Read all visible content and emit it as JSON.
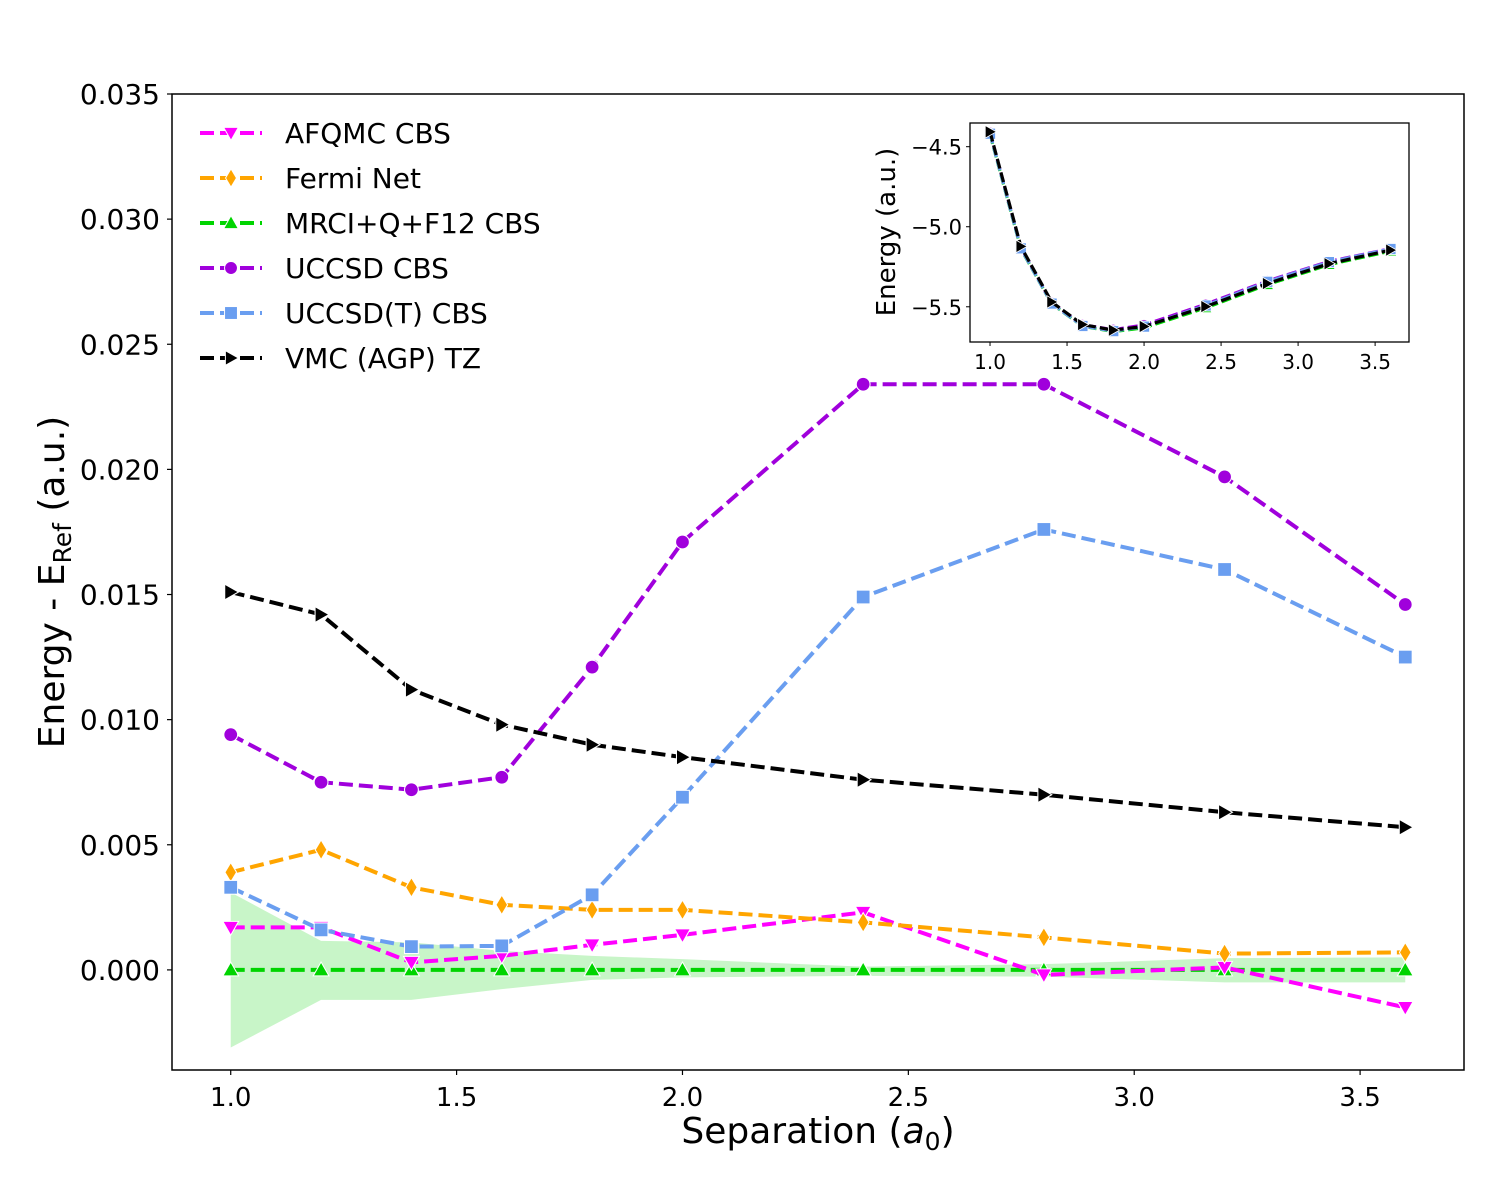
{
  "chart_data": [
    {
      "id": "main",
      "type": "line",
      "title": "",
      "xlabel": "Separation (a0)",
      "xlabel_parts": {
        "prefix": "Separation (",
        "var": "a",
        "sub": "0",
        "suffix": ")"
      },
      "ylabel": "Energy - E_Ref (a.u.)",
      "ylabel_parts": {
        "prefix": "Energy - E",
        "sub": "Ref",
        "suffix": " (a.u.)"
      },
      "xlim": [
        0.87,
        3.73
      ],
      "ylim": [
        -0.004,
        0.035
      ],
      "xticks": [
        1.0,
        1.5,
        2.0,
        2.5,
        3.0,
        3.5
      ],
      "xtick_labels": [
        "1.0",
        "1.5",
        "2.0",
        "2.5",
        "3.0",
        "3.5"
      ],
      "yticks": [
        0.0,
        0.005,
        0.01,
        0.015,
        0.02,
        0.025,
        0.03,
        0.035
      ],
      "ytick_labels": [
        "0.000",
        "0.005",
        "0.010",
        "0.015",
        "0.020",
        "0.025",
        "0.030",
        "0.035"
      ],
      "grid": false,
      "legend_position": "top-left",
      "x": [
        1.0,
        1.2,
        1.4,
        1.6,
        1.8,
        2.0,
        2.4,
        2.8,
        3.2,
        3.6
      ],
      "uncertainty_band": {
        "name": "MRCI+Q+F12 CBS uncertainty",
        "color": "#c8f5c8",
        "upper": [
          0.0031,
          0.00116,
          0.0011,
          0.00076,
          0.00056,
          0.00043,
          0.00013,
          0.00023,
          0.00047,
          0.0005
        ],
        "lower": [
          -0.0031,
          -0.0012,
          -0.0012,
          -0.00077,
          -0.0004,
          -0.0003,
          -0.00024,
          -0.00027,
          -0.0005,
          -0.0005
        ]
      },
      "series": [
        {
          "name": "AFQMC CBS",
          "color": "#ff00ff",
          "marker": "triangle-down",
          "values": [
            0.0017,
            0.0017,
            0.0003,
            0.00056,
            0.001,
            0.0014,
            0.0023,
            -0.0002,
            0.0001,
            -0.0015
          ]
        },
        {
          "name": "Fermi Net",
          "color": "#ffa500",
          "marker": "diamond",
          "values": [
            0.0039,
            0.0048,
            0.0033,
            0.0026,
            0.0024,
            0.0024,
            0.0019,
            0.0013,
            0.00065,
            0.0007
          ]
        },
        {
          "name": "MRCI+Q+F12 CBS",
          "color": "#00d400",
          "marker": "triangle-up",
          "values": [
            0.0,
            0.0,
            0.0,
            0.0,
            0.0,
            0.0,
            0.0,
            0.0,
            0.0,
            0.0
          ]
        },
        {
          "name": "UCCSD CBS",
          "color": "#a000dc",
          "marker": "circle",
          "values": [
            0.0094,
            0.0075,
            0.0072,
            0.0077,
            0.0121,
            0.0171,
            0.0234,
            0.0234,
            0.0197,
            0.0146
          ]
        },
        {
          "name": "UCCSD(T) CBS",
          "color": "#6a9ef0",
          "marker": "square",
          "values": [
            0.0033,
            0.0016,
            0.00093,
            0.00096,
            0.003,
            0.0069,
            0.0149,
            0.0176,
            0.016,
            0.0125
          ]
        },
        {
          "name": "VMC (AGP) TZ",
          "color": "#000000",
          "marker": "triangle-right",
          "values": [
            0.0151,
            0.0142,
            0.0112,
            0.0098,
            0.009,
            0.0085,
            0.0076,
            0.007,
            0.0063,
            0.0057
          ]
        }
      ]
    },
    {
      "id": "inset",
      "type": "line",
      "title": "",
      "xlabel": "",
      "ylabel": "Energy (a.u.)",
      "xlim": [
        0.87,
        3.72
      ],
      "ylim": [
        -5.72,
        -4.352
      ],
      "xticks": [
        1.0,
        1.5,
        2.0,
        2.5,
        3.0,
        3.5
      ],
      "xtick_labels": [
        "1.0",
        "1.5",
        "2.0",
        "2.5",
        "3.0",
        "3.5"
      ],
      "yticks": [
        -4.5,
        -5.0,
        -5.5
      ],
      "ytick_labels": [
        "−4.5",
        "−5.0",
        "−5.5"
      ],
      "grid": false,
      "x": [
        1.0,
        1.2,
        1.4,
        1.6,
        1.8,
        2.0,
        2.4,
        2.8,
        3.2,
        3.6
      ],
      "series": [
        {
          "name": "MRCI+Q+F12 CBS",
          "color": "#00d400",
          "marker": "triangle-up",
          "values": [
            -4.422,
            -5.137,
            -5.481,
            -5.621,
            -5.655,
            -5.631,
            -5.507,
            -5.362,
            -5.237,
            -5.152
          ]
        },
        {
          "name": "UCCSD CBS",
          "color": "#a000dc",
          "marker": "circle",
          "values": [
            -4.412,
            -5.129,
            -5.474,
            -5.613,
            -5.643,
            -5.614,
            -5.484,
            -5.339,
            -5.217,
            -5.137
          ]
        },
        {
          "name": "UCCSD(T) CBS",
          "color": "#6a9ef0",
          "marker": "square",
          "values": [
            -4.419,
            -5.135,
            -5.48,
            -5.62,
            -5.652,
            -5.624,
            -5.492,
            -5.344,
            -5.221,
            -5.139
          ]
        },
        {
          "name": "VMC (AGP) TZ",
          "color": "#000000",
          "marker": "triangle-right",
          "values": [
            -4.407,
            -5.123,
            -5.47,
            -5.611,
            -5.646,
            -5.623,
            -5.499,
            -5.355,
            -5.231,
            -5.146
          ]
        }
      ]
    }
  ]
}
